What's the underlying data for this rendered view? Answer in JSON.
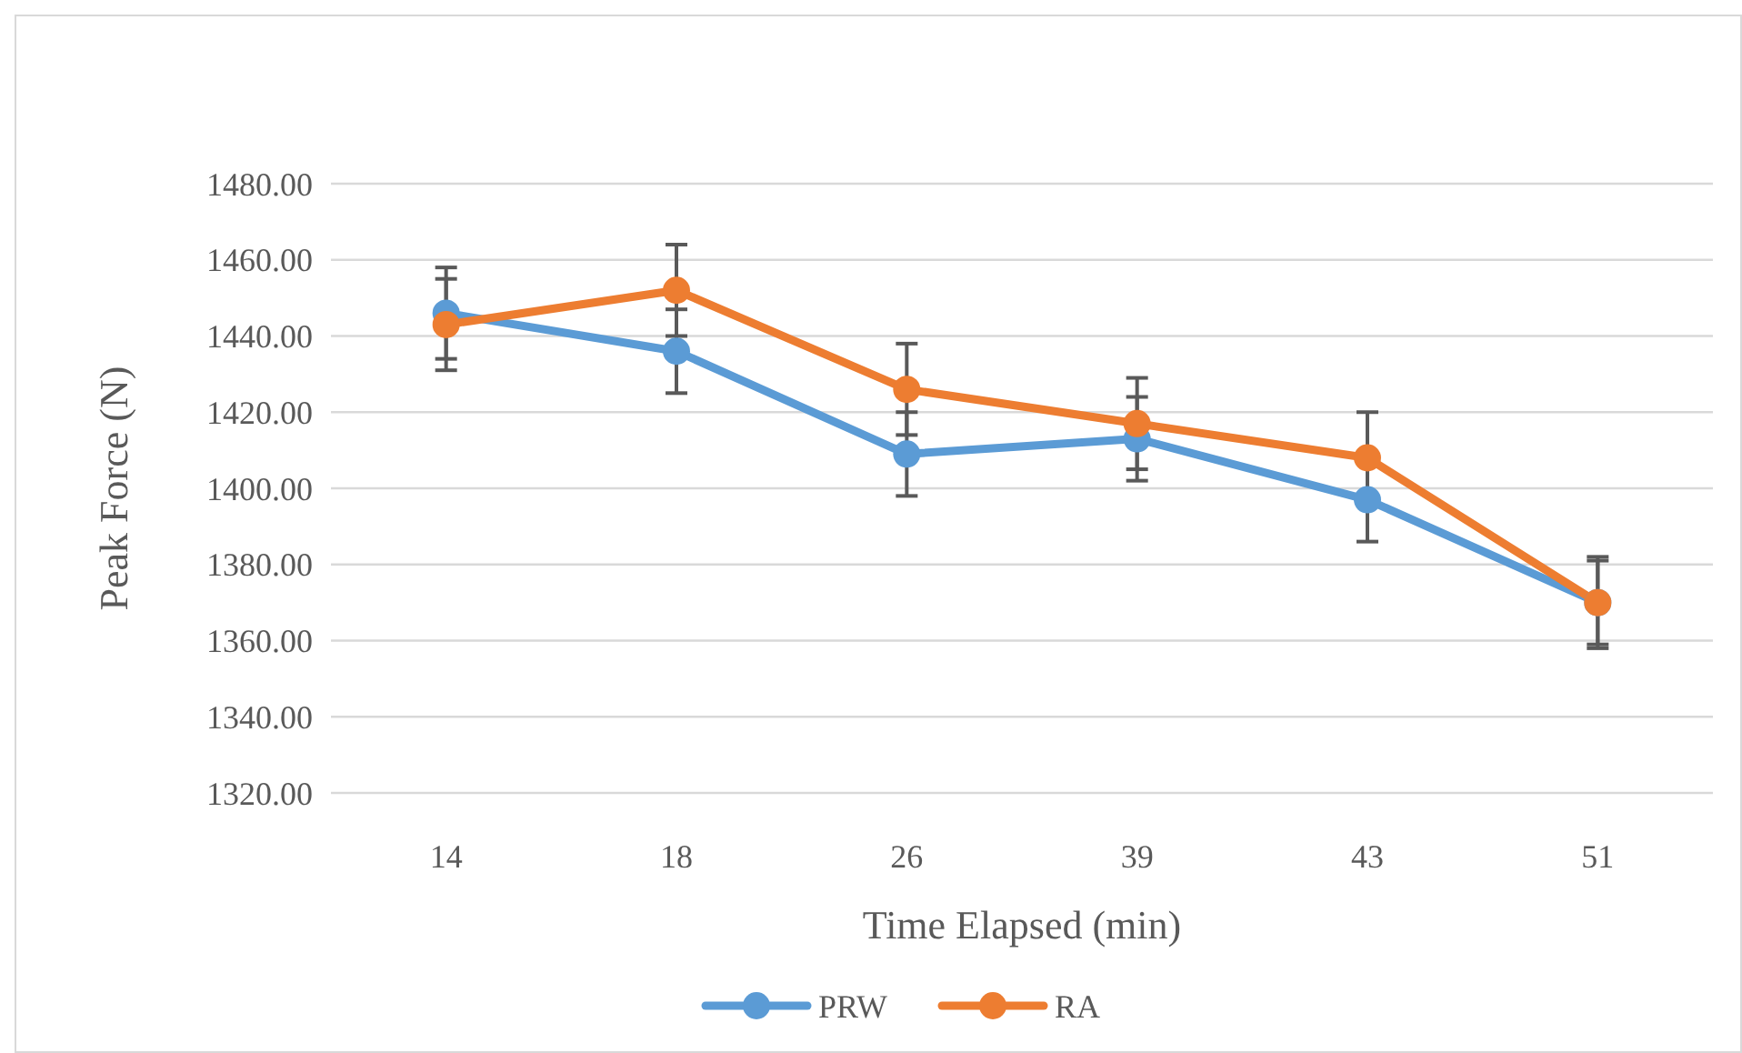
{
  "chart_data": {
    "type": "line",
    "xlabel": "Time Elapsed (min)",
    "ylabel": "Peak Force (N)",
    "categories": [
      "14",
      "18",
      "26",
      "39",
      "43",
      "51"
    ],
    "ylim": [
      1320,
      1480
    ],
    "yticks": [
      {
        "value": 1320,
        "label": "1320.00"
      },
      {
        "value": 1340,
        "label": "1340.00"
      },
      {
        "value": 1360,
        "label": "1360.00"
      },
      {
        "value": 1380,
        "label": "1380.00"
      },
      {
        "value": 1400,
        "label": "1400.00"
      },
      {
        "value": 1420,
        "label": "1420.00"
      },
      {
        "value": 1440,
        "label": "1440.00"
      },
      {
        "value": 1460,
        "label": "1460.00"
      },
      {
        "value": 1480,
        "label": "1480.00"
      }
    ],
    "grid": "y",
    "legend": "bottom",
    "marker": "circle",
    "line_style": "solid",
    "series": [
      {
        "name": "PRW",
        "color": "#5b9bd5",
        "values": [
          1446,
          1436,
          1409,
          1413,
          1397,
          1370
        ],
        "errors": [
          12,
          11,
          11,
          11,
          11,
          11
        ]
      },
      {
        "name": "RA",
        "color": "#ed7d31",
        "values": [
          1443,
          1452,
          1426,
          1417,
          1408,
          1370
        ],
        "errors": [
          12,
          12,
          12,
          12,
          12,
          12
        ]
      }
    ]
  }
}
